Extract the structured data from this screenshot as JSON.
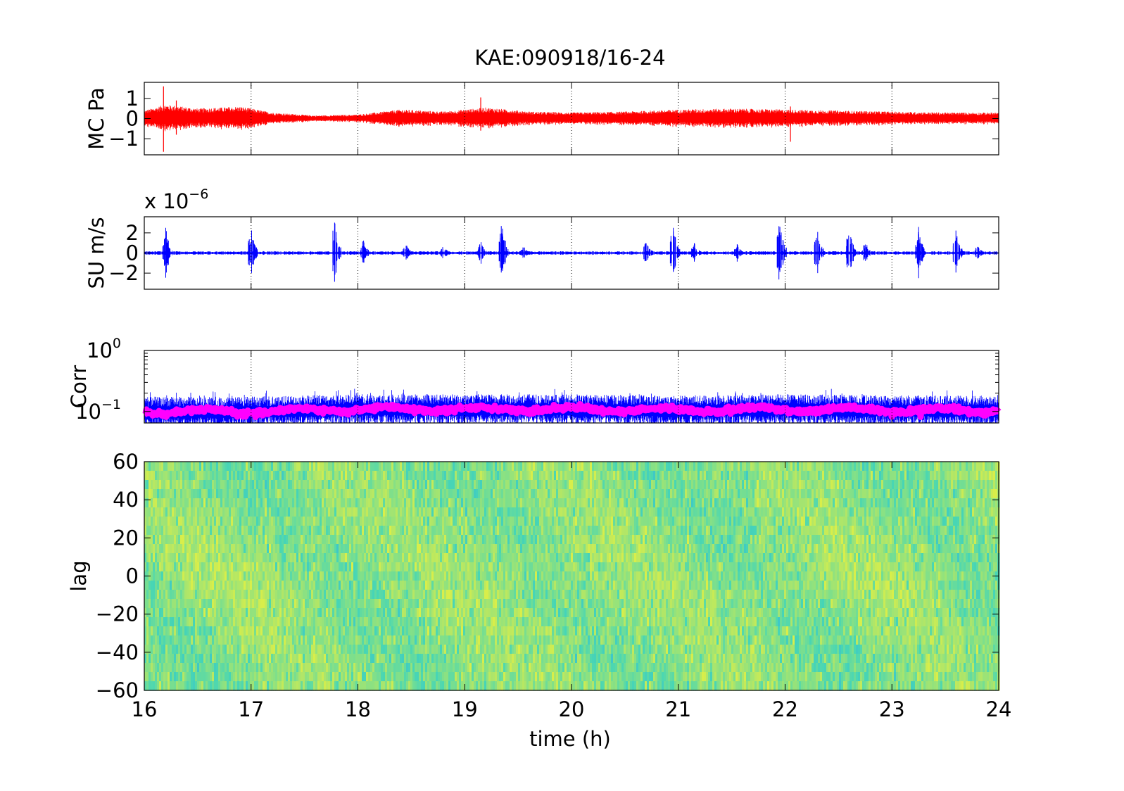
{
  "figure": {
    "title": "KAE:090918/16-24",
    "xlabel": "time (h)",
    "x_ticks": [
      "16",
      "17",
      "18",
      "19",
      "20",
      "21",
      "22",
      "23",
      "24"
    ]
  },
  "chart_data": [
    {
      "type": "line",
      "panel": "mc",
      "ylabel": "MC Pa",
      "xlim": [
        16,
        24
      ],
      "ylim": [
        -1.8,
        1.8
      ],
      "y_ticks": [
        {
          "v": 1,
          "label": "1"
        },
        {
          "v": 0,
          "label": "0"
        },
        {
          "v": -1,
          "label": "−1"
        }
      ],
      "series": [
        {
          "color": "#ff0000",
          "envelope": [
            [
              16.0,
              0.4
            ],
            [
              16.2,
              0.7
            ],
            [
              16.5,
              0.5
            ],
            [
              16.9,
              0.6
            ],
            [
              17.2,
              0.3
            ],
            [
              17.6,
              0.15
            ],
            [
              18.0,
              0.2
            ],
            [
              18.4,
              0.45
            ],
            [
              18.8,
              0.35
            ],
            [
              19.2,
              0.55
            ],
            [
              19.6,
              0.35
            ],
            [
              20.0,
              0.3
            ],
            [
              20.5,
              0.35
            ],
            [
              21.0,
              0.45
            ],
            [
              21.5,
              0.5
            ],
            [
              22.0,
              0.45
            ],
            [
              22.5,
              0.4
            ],
            [
              23.0,
              0.35
            ],
            [
              23.5,
              0.3
            ],
            [
              24.0,
              0.3
            ]
          ],
          "spikes": [
            [
              16.18,
              1.6,
              -1.65
            ],
            [
              16.3,
              0.9,
              -0.8
            ],
            [
              19.15,
              1.05,
              -0.6
            ],
            [
              22.05,
              0.6,
              -1.15
            ]
          ]
        }
      ]
    },
    {
      "type": "line",
      "panel": "su",
      "ylabel": "SU m/s",
      "exponent_label": "x 10−6",
      "xlim": [
        16,
        24
      ],
      "ylim": [
        -3.6,
        3.6
      ],
      "y_ticks": [
        {
          "v": 2,
          "label": "2"
        },
        {
          "v": 0,
          "label": "0"
        },
        {
          "v": -2,
          "label": "−2"
        }
      ],
      "series": [
        {
          "color": "#0000ff",
          "baseline": 0.15,
          "bursts": [
            [
              16.2,
              2.8
            ],
            [
              17.0,
              2.6
            ],
            [
              17.78,
              3.5
            ],
            [
              18.05,
              1.4
            ],
            [
              18.45,
              1.0
            ],
            [
              18.8,
              0.8
            ],
            [
              19.15,
              1.2
            ],
            [
              19.35,
              3.4
            ],
            [
              19.55,
              0.8
            ],
            [
              20.7,
              1.3
            ],
            [
              20.95,
              3.3
            ],
            [
              21.15,
              1.1
            ],
            [
              21.55,
              1.0
            ],
            [
              21.95,
              3.5
            ],
            [
              22.3,
              2.6
            ],
            [
              22.6,
              2.8
            ],
            [
              22.75,
              1.3
            ],
            [
              23.25,
              2.6
            ],
            [
              23.6,
              2.5
            ],
            [
              23.8,
              0.9
            ]
          ]
        }
      ]
    },
    {
      "type": "line",
      "panel": "corr",
      "ylabel": "Corr",
      "y_scale": "log",
      "xlim": [
        16,
        24
      ],
      "ylim": [
        0.065,
        1
      ],
      "y_ticks": [
        {
          "v": 1,
          "label": "10",
          "exp": "0"
        },
        {
          "v": 0.1,
          "label": "10",
          "exp": "−1"
        }
      ],
      "series": [
        {
          "name": "",
          "color": "#0000ff",
          "level": [
            [
              16,
              0.1
            ],
            [
              17,
              0.1
            ],
            [
              18,
              0.11
            ],
            [
              19,
              0.11
            ],
            [
              20,
              0.11
            ],
            [
              21,
              0.105
            ],
            [
              22,
              0.11
            ],
            [
              23,
              0.105
            ],
            [
              24,
              0.105
            ]
          ],
          "spread": 1.45
        },
        {
          "name": "",
          "color": "#ff00ff",
          "level": [
            [
              16,
              0.1
            ],
            [
              17,
              0.1
            ],
            [
              18,
              0.11
            ],
            [
              19,
              0.11
            ],
            [
              20,
              0.11
            ],
            [
              21,
              0.105
            ],
            [
              22,
              0.11
            ],
            [
              23,
              0.105
            ],
            [
              24,
              0.105
            ]
          ],
          "spread": 1.12
        }
      ]
    },
    {
      "type": "heatmap",
      "panel": "lag",
      "ylabel": "lag",
      "xlim": [
        16,
        24
      ],
      "ylim": [
        -60,
        60
      ],
      "y_ticks": [
        {
          "v": 60,
          "label": "60"
        },
        {
          "v": 40,
          "label": "40"
        },
        {
          "v": 20,
          "label": "20"
        },
        {
          "v": 0,
          "label": "0"
        },
        {
          "v": -20,
          "label": "−20"
        },
        {
          "v": -40,
          "label": "−40"
        },
        {
          "v": -60,
          "label": "−60"
        }
      ],
      "colormap": [
        "#3ec8c8",
        "#48d6b4",
        "#7ddf8c",
        "#b0e668",
        "#d8ee4a"
      ]
    }
  ]
}
